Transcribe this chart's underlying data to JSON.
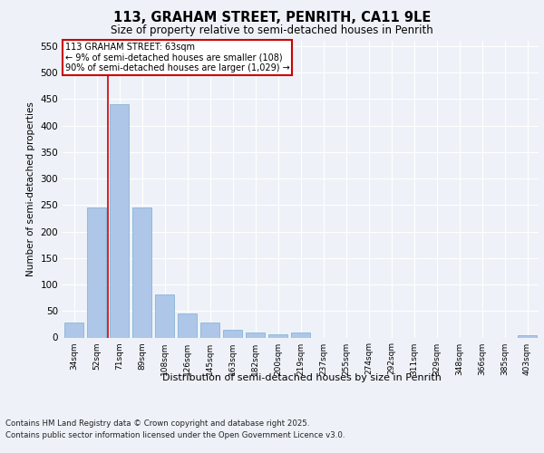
{
  "title": "113, GRAHAM STREET, PENRITH, CA11 9LE",
  "subtitle": "Size of property relative to semi-detached houses in Penrith",
  "xlabel": "Distribution of semi-detached houses by size in Penrith",
  "ylabel": "Number of semi-detached properties",
  "categories": [
    "34sqm",
    "52sqm",
    "71sqm",
    "89sqm",
    "108sqm",
    "126sqm",
    "145sqm",
    "163sqm",
    "182sqm",
    "200sqm",
    "219sqm",
    "237sqm",
    "255sqm",
    "274sqm",
    "292sqm",
    "311sqm",
    "329sqm",
    "348sqm",
    "366sqm",
    "385sqm",
    "403sqm"
  ],
  "values": [
    28,
    245,
    440,
    245,
    82,
    45,
    28,
    15,
    10,
    6,
    10,
    0,
    0,
    0,
    0,
    0,
    0,
    0,
    0,
    0,
    5
  ],
  "bar_color": "#aec6e8",
  "bar_edge_color": "#7aadd4",
  "annotation_text_line1": "113 GRAHAM STREET: 63sqm",
  "annotation_text_line2": "← 9% of semi-detached houses are smaller (108)",
  "annotation_text_line3": "90% of semi-detached houses are larger (1,029) →",
  "annotation_box_color": "#ffffff",
  "annotation_box_edge_color": "#cc0000",
  "vline_color": "#cc0000",
  "vline_x": 1.5,
  "ylim": [
    0,
    560
  ],
  "yticks": [
    0,
    50,
    100,
    150,
    200,
    250,
    300,
    350,
    400,
    450,
    500,
    550
  ],
  "background_color": "#eef2f8",
  "plot_background": "#eef2f8",
  "grid_color": "#ffffff",
  "footer_line1": "Contains HM Land Registry data © Crown copyright and database right 2025.",
  "footer_line2": "Contains public sector information licensed under the Open Government Licence v3.0."
}
